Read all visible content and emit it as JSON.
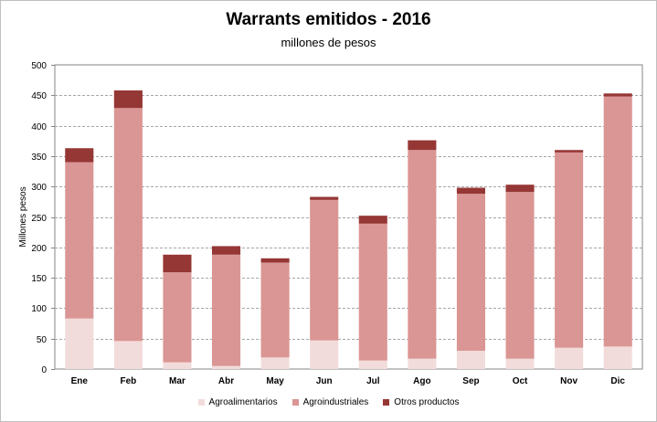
{
  "chart_data": {
    "type": "bar",
    "stacked": true,
    "title": "Warrants  emitidos  - 2016",
    "subtitle": "millones de pesos",
    "ylabel": "Millones pesos",
    "xlabel": "",
    "ylim": [
      0,
      500
    ],
    "yticks": [
      0,
      50,
      100,
      150,
      200,
      250,
      300,
      350,
      400,
      450,
      500
    ],
    "grid": true,
    "legend_position": "bottom",
    "categories": [
      "Ene",
      "Feb",
      "Mar",
      "Abr",
      "May",
      "Jun",
      "Jul",
      "Ago",
      "Sep",
      "Oct",
      "Nov",
      "Dic"
    ],
    "series": [
      {
        "name": "Agroalimentarios",
        "color": "#f2dcdb",
        "values": [
          83,
          46,
          11,
          5,
          19,
          47,
          14,
          17,
          30,
          17,
          35,
          37
        ]
      },
      {
        "name": "Agroindustriales",
        "color": "#da9694",
        "values": [
          257,
          383,
          148,
          183,
          156,
          231,
          225,
          343,
          258,
          274,
          321,
          411
        ]
      },
      {
        "name": "Otros productos",
        "color": "#953735",
        "values": [
          23,
          29,
          29,
          14,
          7,
          5,
          13,
          16,
          10,
          12,
          4,
          5
        ]
      }
    ]
  }
}
